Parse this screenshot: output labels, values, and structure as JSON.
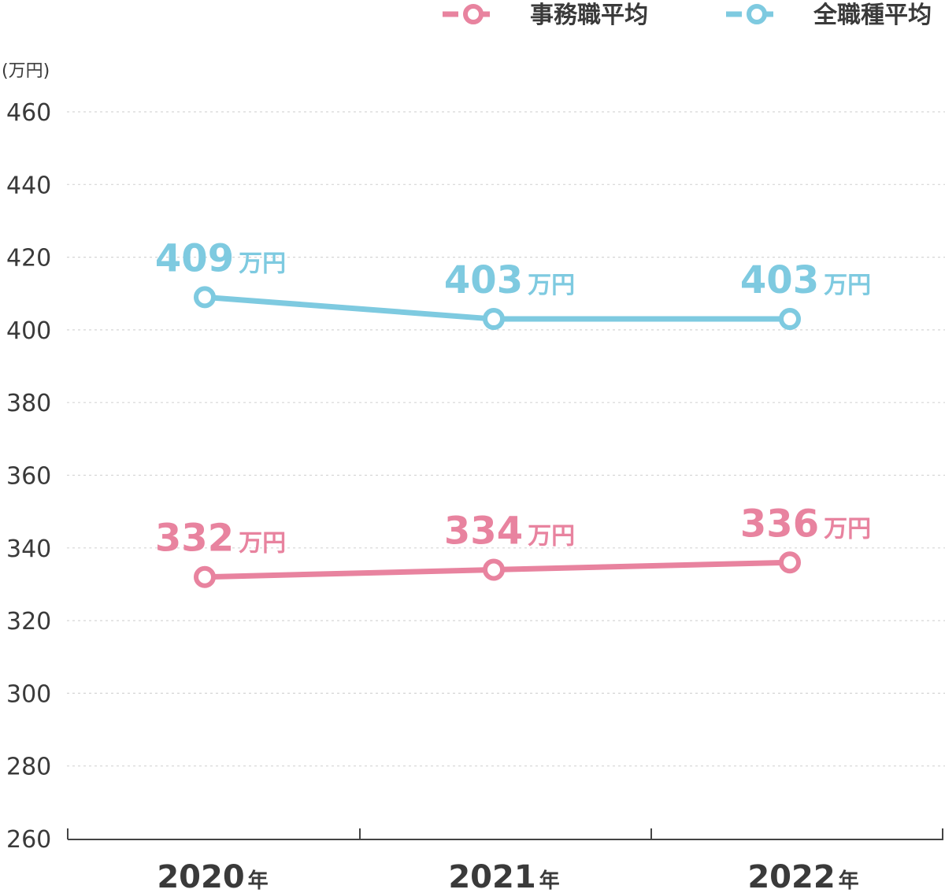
{
  "chart_data": {
    "type": "line",
    "unit_label": "(万円)",
    "categories": [
      "2020",
      "2021",
      "2022"
    ],
    "category_suffix": "年",
    "ylim": [
      260,
      460
    ],
    "yticks": [
      460,
      440,
      420,
      400,
      380,
      360,
      340,
      320,
      300,
      280,
      260
    ],
    "grid": true,
    "legend_position": "top-right",
    "value_unit": "万円",
    "series": [
      {
        "name": "事務職平均",
        "color": "#e8839f",
        "values": [
          332,
          334,
          336
        ]
      },
      {
        "name": "全職種平均",
        "color": "#7ecae0",
        "values": [
          409,
          403,
          403
        ]
      }
    ]
  }
}
